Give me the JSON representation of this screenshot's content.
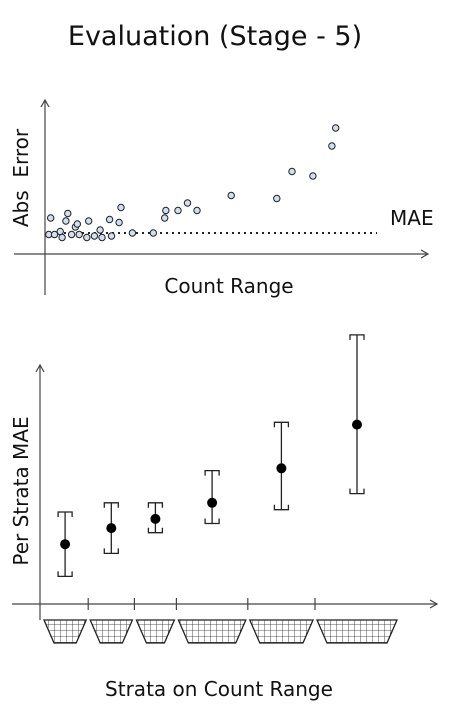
{
  "title": "Evaluation (Stage - 5)",
  "chart_data": [
    {
      "type": "scatter",
      "xlabel": "Count Range",
      "ylabel": "Abs  Error",
      "reference_line": {
        "label": "MAE",
        "y": 1.4,
        "style": "dotted"
      },
      "xlim": [
        0,
        100
      ],
      "ylim": [
        0,
        10
      ],
      "points": [
        {
          "x": 1,
          "y": 1.3
        },
        {
          "x": 1.5,
          "y": 2.4
        },
        {
          "x": 2.5,
          "y": 1.3
        },
        {
          "x": 4,
          "y": 1.5
        },
        {
          "x": 4.5,
          "y": 1.1
        },
        {
          "x": 5.5,
          "y": 2.2
        },
        {
          "x": 6,
          "y": 2.7
        },
        {
          "x": 7,
          "y": 1.3
        },
        {
          "x": 8,
          "y": 1.8
        },
        {
          "x": 8.5,
          "y": 2.0
        },
        {
          "x": 9,
          "y": 1.3
        },
        {
          "x": 11,
          "y": 1.1
        },
        {
          "x": 11.5,
          "y": 2.2
        },
        {
          "x": 13,
          "y": 1.2
        },
        {
          "x": 14.5,
          "y": 1.6
        },
        {
          "x": 15,
          "y": 1.1
        },
        {
          "x": 17,
          "y": 2.3
        },
        {
          "x": 17.5,
          "y": 1.2
        },
        {
          "x": 19.5,
          "y": 2.1
        },
        {
          "x": 20,
          "y": 3.1
        },
        {
          "x": 23,
          "y": 1.4
        },
        {
          "x": 28.5,
          "y": 1.4
        },
        {
          "x": 31.5,
          "y": 2.4
        },
        {
          "x": 31.8,
          "y": 2.9
        },
        {
          "x": 35,
          "y": 2.9
        },
        {
          "x": 37.5,
          "y": 3.4
        },
        {
          "x": 40,
          "y": 2.9
        },
        {
          "x": 49,
          "y": 3.9
        },
        {
          "x": 61,
          "y": 3.7
        },
        {
          "x": 65,
          "y": 5.5
        },
        {
          "x": 70.5,
          "y": 5.2
        },
        {
          "x": 75.5,
          "y": 7.2
        },
        {
          "x": 76.5,
          "y": 8.4
        }
      ],
      "grid": false
    },
    {
      "type": "errorbar",
      "xlabel": "Strata on Count Range",
      "ylabel": "Per Strata MAE",
      "ylim": [
        0,
        10
      ],
      "strata_boundaries": [
        0,
        11,
        22,
        32,
        49,
        65,
        85
      ],
      "strata": [
        {
          "x": 5.5,
          "y": 2.6,
          "lower": 1.2,
          "upper": 4.0
        },
        {
          "x": 16.5,
          "y": 3.3,
          "lower": 2.2,
          "upper": 4.4
        },
        {
          "x": 27,
          "y": 3.7,
          "lower": 3.1,
          "upper": 4.4
        },
        {
          "x": 40.5,
          "y": 4.4,
          "lower": 3.5,
          "upper": 5.8
        },
        {
          "x": 57,
          "y": 5.9,
          "lower": 4.1,
          "upper": 7.9
        },
        {
          "x": 75,
          "y": 7.8,
          "lower": 4.8,
          "upper": 11.7
        }
      ],
      "grid": false
    }
  ]
}
